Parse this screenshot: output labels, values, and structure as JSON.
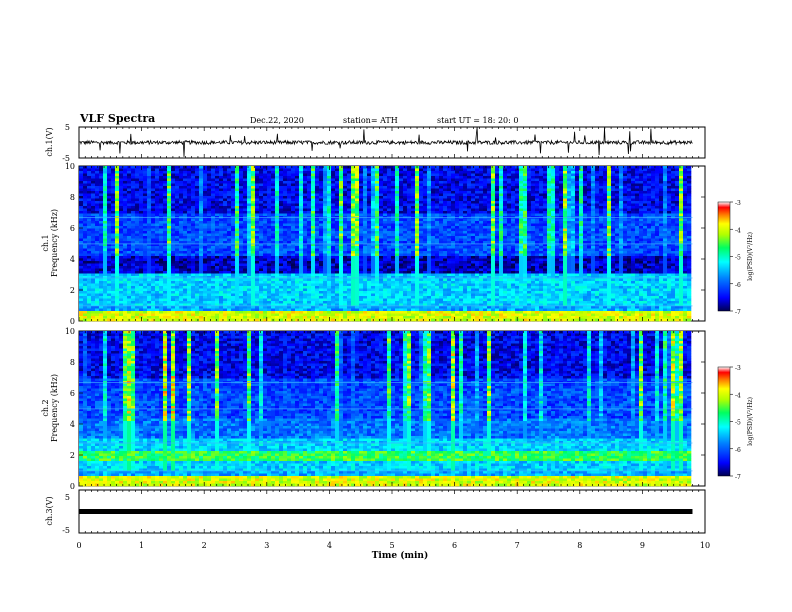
{
  "header": {
    "title": "VLF Spectra",
    "date": "Dec.22, 2020",
    "station": "station= ATH",
    "start": "start  UT  =    18: 20: 0"
  },
  "panels": {
    "ch1_waveform": {
      "ylabel": "ch.1(V)",
      "ymax_label": "5",
      "ymin_label": "-5"
    },
    "ch1_spectrogram": {
      "ylabel_channel": "ch.1",
      "ylabel": "Frequency (kHz)"
    },
    "ch2_spectrogram": {
      "ylabel_channel": "ch.2",
      "ylabel": "Frequency (kHz)"
    },
    "ch3_waveform": {
      "ylabel": "ch.3(V)",
      "ymax_label": "5",
      "ymin_label": "-5"
    }
  },
  "colorbar": {
    "label": "log(PSD)(V²/Hz)",
    "ticks": [
      "-3",
      "-4",
      "-5",
      "-6",
      "-7"
    ],
    "colors": [
      "#000080",
      "#0000ff",
      "#0080ff",
      "#00ffff",
      "#00ff80",
      "#80ff00",
      "#ffff00",
      "#ff8000",
      "#ff0000",
      "#ffffff"
    ]
  },
  "xaxis": {
    "label": "Time (min)"
  },
  "chart_data": [
    {
      "type": "line",
      "name": "ch1_waveform",
      "ylabel": "ch.1(V)",
      "ylim": [
        -5,
        5
      ],
      "xlim": [
        0,
        10
      ],
      "series": [
        {
          "x_range": [
            0,
            9.8
          ],
          "mean": 0,
          "noise_amplitude": 0.6
        }
      ],
      "xticks": [
        "0",
        "1",
        "2",
        "3",
        "4",
        "5",
        "6",
        "7",
        "8",
        "9",
        "10"
      ]
    },
    {
      "type": "heatmap",
      "name": "ch1_spectrogram",
      "ylabel": "Frequency (kHz)",
      "ylim": [
        0,
        10
      ],
      "xlim": [
        0,
        10
      ],
      "yticks": [
        "0",
        "2",
        "4",
        "6",
        "8",
        "10"
      ],
      "xticks": [
        "0",
        "1",
        "2",
        "3",
        "4",
        "5",
        "6",
        "7",
        "8",
        "9",
        "10"
      ],
      "data_end_min": 9.8,
      "colorbar_range": [
        -7,
        -3
      ]
    },
    {
      "type": "heatmap",
      "name": "ch2_spectrogram",
      "ylabel": "Frequency (kHz)",
      "ylim": [
        0,
        10
      ],
      "xlim": [
        0,
        10
      ],
      "yticks": [
        "0",
        "2",
        "4",
        "6",
        "8",
        "10"
      ],
      "xticks": [
        "0",
        "1",
        "2",
        "3",
        "4",
        "5",
        "6",
        "7",
        "8",
        "9",
        "10"
      ],
      "data_end_min": 9.8,
      "colorbar_range": [
        -7,
        -3
      ]
    },
    {
      "type": "line",
      "name": "ch3_waveform",
      "ylabel": "ch.3(V)",
      "ylim": [
        -5,
        5
      ],
      "xlim": [
        0,
        10
      ],
      "series": [
        {
          "x_range": [
            0,
            9.8
          ],
          "value": 0
        }
      ],
      "xticks": [
        "0",
        "1",
        "2",
        "3",
        "4",
        "5",
        "6",
        "7",
        "8",
        "9",
        "10"
      ]
    }
  ]
}
